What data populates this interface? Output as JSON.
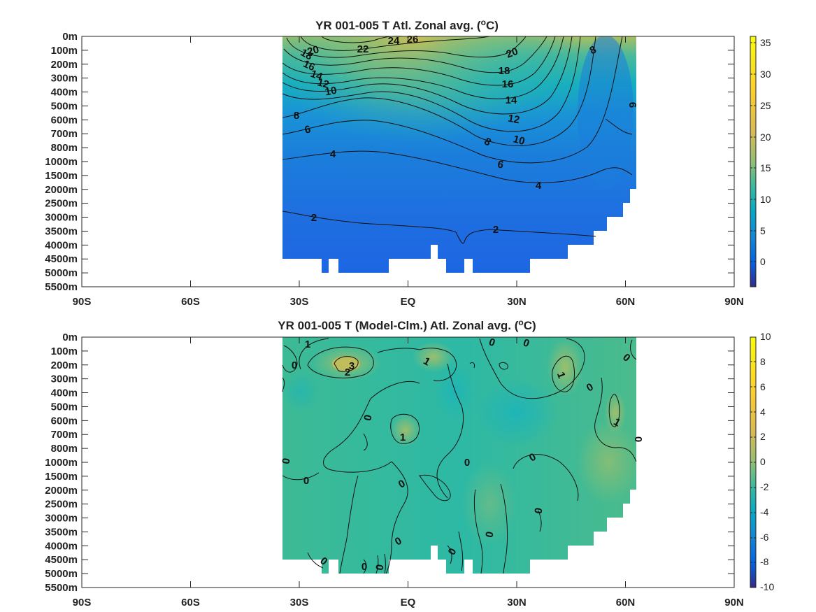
{
  "chart_data": [
    {
      "type": "heatmap",
      "title": "YR 001-005 T Atl. Zonal avg.",
      "title_unit_sup": "o",
      "title_unit": "C",
      "x_ticks": [
        "90S",
        "60S",
        "30S",
        "EQ",
        "30N",
        "60N",
        "90N"
      ],
      "x_values": [
        -90,
        -60,
        -30,
        0,
        30,
        60,
        90
      ],
      "y_ticks": [
        "0m",
        "100m",
        "200m",
        "300m",
        "400m",
        "500m",
        "600m",
        "700m",
        "800m",
        "1000m",
        "1500m",
        "2000m",
        "2500m",
        "3000m",
        "3500m",
        "4000m",
        "4500m",
        "5000m",
        "5500m"
      ],
      "colorbar_ticks": [
        "35",
        "30",
        "25",
        "20",
        "15",
        "10",
        "5",
        "0"
      ],
      "colorbar_range": [
        -4,
        36
      ],
      "colormap": "parula",
      "contour_labels": [
        "20",
        "22",
        "24",
        "26",
        "18",
        "16",
        "14",
        "12",
        "10",
        "8",
        "6",
        "4",
        "2",
        "20",
        "18",
        "16",
        "14",
        "12",
        "10",
        "8",
        "6",
        "4",
        "2",
        "8",
        "6"
      ],
      "data_extent_latitude": [
        -34,
        63
      ],
      "grid": false
    },
    {
      "type": "heatmap",
      "title": "YR 001-005 T (Model-Clm.) Atl. Zonal avg.",
      "title_unit_sup": "o",
      "title_unit": "C",
      "x_ticks": [
        "90S",
        "60S",
        "30S",
        "EQ",
        "30N",
        "60N",
        "90N"
      ],
      "x_values": [
        -90,
        -60,
        -30,
        0,
        30,
        60,
        90
      ],
      "y_ticks": [
        "0m",
        "100m",
        "200m",
        "300m",
        "400m",
        "500m",
        "600m",
        "700m",
        "800m",
        "1000m",
        "1500m",
        "2000m",
        "2500m",
        "3000m",
        "3500m",
        "4000m",
        "4500m",
        "5000m",
        "5500m"
      ],
      "colorbar_ticks": [
        "10",
        "8",
        "6",
        "4",
        "2",
        "0",
        "-2",
        "-4",
        "-6",
        "-8",
        "-10"
      ],
      "colorbar_range": [
        -10,
        10
      ],
      "colormap": "parula",
      "contour_labels": [
        "1",
        "3",
        "2",
        "0",
        "1",
        "0",
        "0",
        "1",
        "0",
        "0",
        "0",
        "1",
        "1",
        "0",
        "0",
        "0",
        "0",
        "0",
        "0",
        "0",
        "0",
        "0",
        "0",
        "0",
        "0",
        "0"
      ],
      "data_extent_latitude": [
        -34,
        63
      ],
      "grid": false
    }
  ]
}
